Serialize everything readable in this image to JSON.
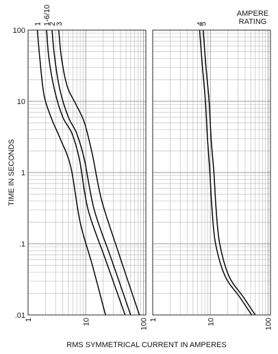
{
  "chart_data": {
    "type": "line",
    "ylabel": "TIME IN SECONDS",
    "xlabel": "RMS SYMMETRICAL CURRENT IN AMPERES",
    "legend_title": [
      "AMPERE",
      "RATING"
    ],
    "x_scale": "log",
    "y_scale": "log",
    "ylim": [
      0.01,
      100
    ],
    "y_ticks": [
      {
        "value": 100,
        "label": "100"
      },
      {
        "value": 10,
        "label": "10"
      },
      {
        "value": 1,
        "label": "1"
      },
      {
        "value": 0.1,
        "label": ".1"
      },
      {
        "value": 0.01,
        "label": ".01"
      }
    ],
    "grid": true,
    "panels": [
      {
        "xlim": [
          1,
          110
        ],
        "x_ticks": [
          {
            "value": 1,
            "label": "1"
          },
          {
            "value": 10,
            "label": "10"
          },
          {
            "value": 100,
            "label": "100"
          }
        ],
        "series": [
          {
            "name": "1",
            "points": [
              [
                1.45,
                100
              ],
              [
                1.6,
                40
              ],
              [
                1.9,
                12
              ],
              [
                2.6,
                5.5
              ],
              [
                3.6,
                3
              ],
              [
                5.5,
                1.2
              ],
              [
                8,
                0.2
              ],
              [
                13,
                0.05
              ],
              [
                22,
                0.01
              ]
            ]
          },
          {
            "name": "1-6/10",
            "points": [
              [
                2.1,
                100
              ],
              [
                2.3,
                40
              ],
              [
                2.9,
                14
              ],
              [
                4,
                6
              ],
              [
                5.8,
                3.5
              ],
              [
                7.8,
                1.5
              ],
              [
                11,
                0.3
              ],
              [
                22,
                0.06
              ],
              [
                48,
                0.01
              ]
            ]
          },
          {
            "name": "2",
            "points": [
              [
                2.6,
                100
              ],
              [
                2.9,
                40
              ],
              [
                3.6,
                14
              ],
              [
                5,
                6
              ],
              [
                7,
                3.5
              ],
              [
                9.5,
                1.5
              ],
              [
                14,
                0.3
              ],
              [
                28,
                0.06
              ],
              [
                60,
                0.01
              ]
            ]
          },
          {
            "name": "3",
            "points": [
              [
                3.4,
                100
              ],
              [
                3.8,
                40
              ],
              [
                4.8,
                16
              ],
              [
                6.8,
                9
              ],
              [
                9.5,
                5
              ],
              [
                13,
                1.8
              ],
              [
                19,
                0.4
              ],
              [
                38,
                0.07
              ],
              [
                85,
                0.01
              ]
            ]
          }
        ]
      },
      {
        "xlim": [
          1,
          110
        ],
        "x_ticks": [
          {
            "value": 1,
            "label": "1"
          },
          {
            "value": 10,
            "label": "10"
          },
          {
            "value": 100,
            "label": "100"
          }
        ],
        "series": [
          {
            "name": "4",
            "points": [
              [
                6.5,
                100
              ],
              [
                7.3,
                30
              ],
              [
                8.2,
                10
              ],
              [
                8.9,
                3
              ],
              [
                9.8,
                1
              ],
              [
                10.7,
                0.3
              ],
              [
                12.3,
                0.1
              ],
              [
                18,
                0.035
              ],
              [
                32,
                0.018
              ],
              [
                52,
                0.01
              ]
            ]
          },
          {
            "name": "5",
            "points": [
              [
                7.5,
                100
              ],
              [
                8.4,
                30
              ],
              [
                9.5,
                10
              ],
              [
                10.3,
                3
              ],
              [
                11.5,
                1
              ],
              [
                12.6,
                0.3
              ],
              [
                14.5,
                0.1
              ],
              [
                21,
                0.035
              ],
              [
                37,
                0.018
              ],
              [
                60,
                0.01
              ]
            ]
          }
        ]
      }
    ]
  }
}
